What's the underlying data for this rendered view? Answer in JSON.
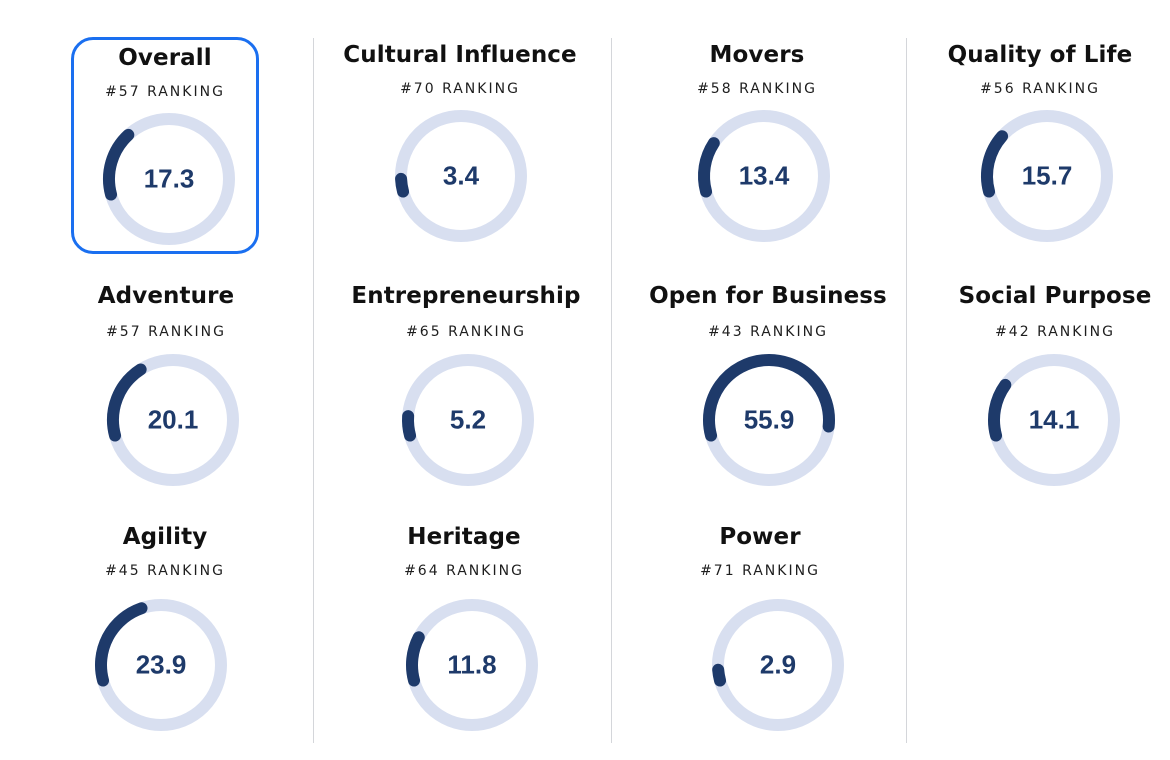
{
  "colors": {
    "track": "#d8dff0",
    "arc": "#1e3a6a",
    "value_text": "#1e3a6a",
    "selected_border": "#1a6ff0",
    "divider": "#d4d6da"
  },
  "scale_max": 100,
  "metrics": [
    {
      "title": "Overall",
      "rank": "#57 RANKING",
      "value": "17.3",
      "selected": true
    },
    {
      "title": "Cultural Influence",
      "rank": "#70 RANKING",
      "value": "3.4"
    },
    {
      "title": "Movers",
      "rank": "#58 RANKING",
      "value": "13.4"
    },
    {
      "title": "Quality of Life",
      "rank": "#56 RANKING",
      "value": "15.7"
    },
    {
      "title": "Adventure",
      "rank": "#57 RANKING",
      "value": "20.1"
    },
    {
      "title": "Entrepreneurship",
      "rank": "#65 RANKING",
      "value": "5.2"
    },
    {
      "title": "Open for Business",
      "rank": "#43 RANKING",
      "value": "55.9"
    },
    {
      "title": "Social Purpose",
      "rank": "#42 RANKING",
      "value": "14.1"
    },
    {
      "title": "Agility",
      "rank": "#45 RANKING",
      "value": "23.9"
    },
    {
      "title": "Heritage",
      "rank": "#64 RANKING",
      "value": "11.8"
    },
    {
      "title": "Power",
      "rank": "#71 RANKING",
      "value": "2.9"
    }
  ]
}
